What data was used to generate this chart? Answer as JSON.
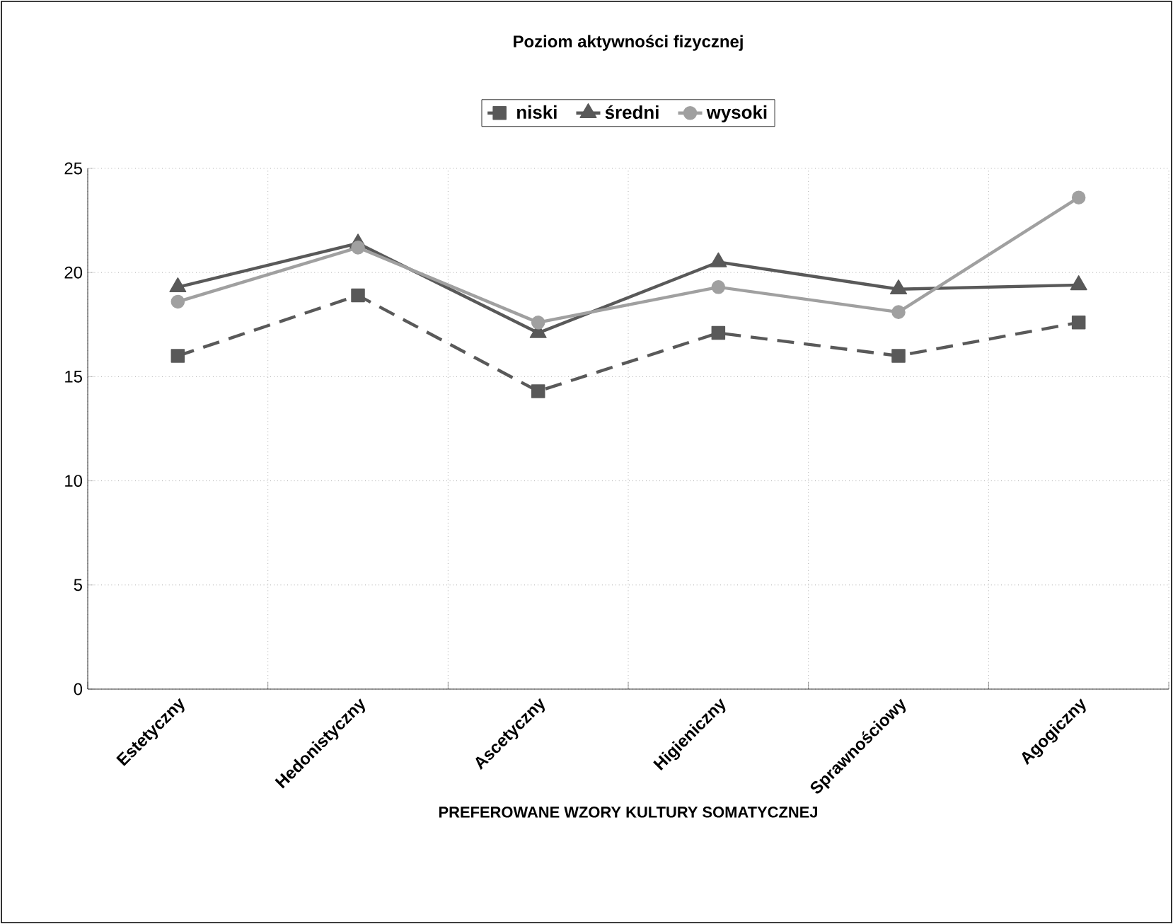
{
  "chart_data": {
    "type": "line",
    "title": "Poziom aktywności fizycznej",
    "xlabel": "PREFEROWANE WZORY KULTURY SOMATYCZNEJ",
    "categories": [
      "Estetyczny",
      "Hedonistyczny",
      "Ascetyczny",
      "Higieniczny",
      "Sprawnościowy",
      "Agogiczny"
    ],
    "series": [
      {
        "name": "niski",
        "color": "#595959",
        "marker": "square",
        "line_style": "dashed",
        "values": [
          16.0,
          18.9,
          14.3,
          17.1,
          16.0,
          17.6
        ]
      },
      {
        "name": "średni",
        "color": "#595959",
        "marker": "triangle",
        "line_style": "solid",
        "values": [
          19.3,
          21.4,
          17.1,
          20.5,
          19.2,
          19.4
        ]
      },
      {
        "name": "wysoki",
        "color": "#a0a0a0",
        "marker": "circle",
        "line_style": "solid",
        "values": [
          18.6,
          21.2,
          17.6,
          19.3,
          18.1,
          23.6
        ]
      }
    ],
    "ylim": [
      0,
      25
    ],
    "yticks": [
      0,
      5,
      10,
      15,
      20,
      25
    ],
    "grid": true,
    "legend": "top"
  }
}
